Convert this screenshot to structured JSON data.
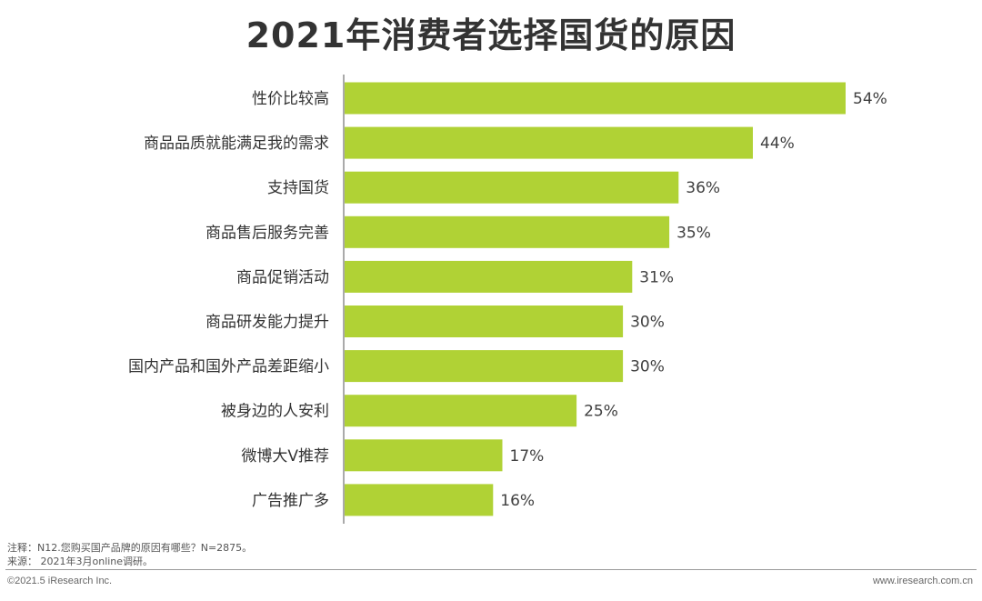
{
  "title": "2021年消费者选择国货的原因",
  "chart_data": {
    "type": "bar",
    "orientation": "horizontal",
    "title": "2021年消费者选择国货的原因",
    "categories": [
      "性价比较高",
      "商品品质就能满足我的需求",
      "支持国货",
      "商品售后服务完善",
      "商品促销活动",
      "商品研发能力提升",
      "国内产品和国外产品差距缩小",
      "被身边的人安利",
      "微博大V推荐",
      "广告推广多"
    ],
    "values": [
      54,
      44,
      36,
      35,
      31,
      30,
      30,
      25,
      17,
      16
    ],
    "value_labels": [
      "54%",
      "44%",
      "36%",
      "35%",
      "31%",
      "30%",
      "30%",
      "25%",
      "17%",
      "16%"
    ],
    "unit": "%",
    "bar_color": "#b0d235",
    "xlim": [
      0,
      54
    ],
    "grid": false
  },
  "notes": {
    "question": "注释：N12.您购买国产品牌的原因有哪些？N=2875。",
    "source": "来源： 2021年3月online调研。"
  },
  "footer": {
    "copyright": "©2021.5 iResearch Inc.",
    "website": "www.iresearch.com.cn"
  }
}
